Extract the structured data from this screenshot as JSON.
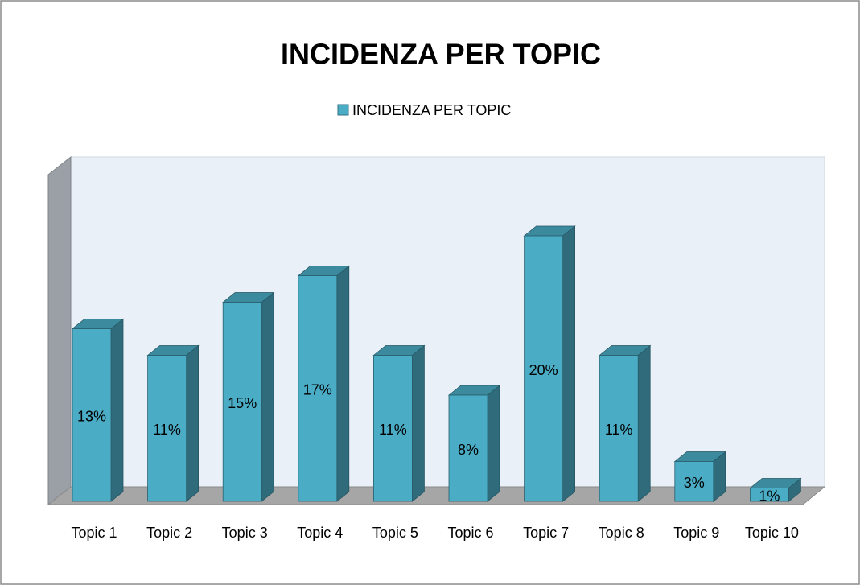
{
  "chart_data": {
    "type": "bar",
    "title": "INCIDENZA PER TOPIC",
    "categories": [
      "Topic 1",
      "Topic 2",
      "Topic 3",
      "Topic 4",
      "Topic 5",
      "Topic 6",
      "Topic 7",
      "Topic 8",
      "Topic 9",
      "Topic 10"
    ],
    "series": [
      {
        "name": "INCIDENZA PER TOPIC",
        "color": "#4bacc6",
        "values": [
          13,
          11,
          15,
          17,
          11,
          8,
          20,
          11,
          3,
          1
        ],
        "value_labels": [
          "13%",
          "11%",
          "15%",
          "17%",
          "11%",
          "8%",
          "20%",
          "11%",
          "3%",
          "1%"
        ]
      }
    ],
    "legend": "top"
  }
}
